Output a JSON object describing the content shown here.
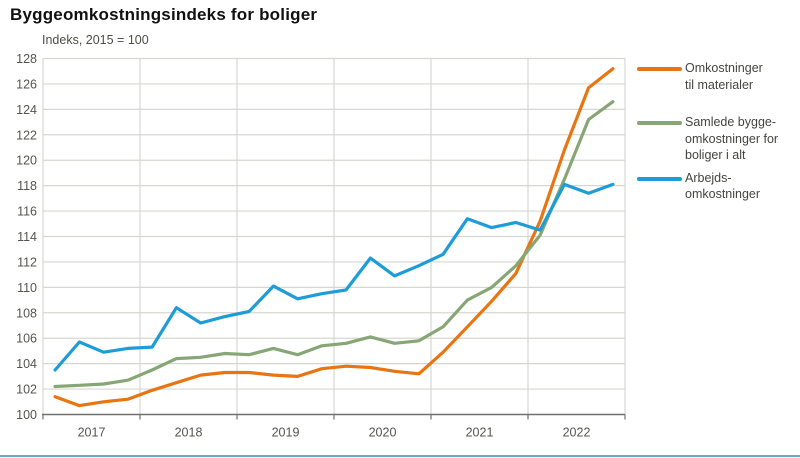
{
  "header": {
    "title": "Byggeomkostningsindeks for boliger",
    "subtitle": "Indeks, 2015 = 100"
  },
  "footer_rule_color": "#6ba7c8",
  "chart_data": {
    "type": "line",
    "title": "Byggeomkostningsindeks for boliger",
    "subtitle": "Indeks, 2015 = 100",
    "xlabel": "",
    "ylabel": "Indeks, 2015 = 100",
    "ylim": [
      100,
      128
    ],
    "ytick_step": 2,
    "yticks": [
      100,
      102,
      104,
      106,
      108,
      110,
      112,
      114,
      116,
      118,
      120,
      122,
      124,
      126,
      128
    ],
    "xticklabels": [
      "2017",
      "2018",
      "2019",
      "2020",
      "2021",
      "2022"
    ],
    "grid": true,
    "legend_position": "right",
    "categories": [
      "2017Q1",
      "2017Q2",
      "2017Q3",
      "2017Q4",
      "2018Q1",
      "2018Q2",
      "2018Q3",
      "2018Q4",
      "2019Q1",
      "2019Q2",
      "2019Q3",
      "2019Q4",
      "2020Q1",
      "2020Q2",
      "2020Q3",
      "2020Q4",
      "2021Q1",
      "2021Q2",
      "2021Q3",
      "2021Q4",
      "2022Q1",
      "2022Q2",
      "2022Q3",
      "2022Q4"
    ],
    "series": [
      {
        "name": "Omkostninger til materialer",
        "legend_label": "Omkostninger\ntil materialer",
        "color": "#e87511",
        "values": [
          101.4,
          100.7,
          101.0,
          101.2,
          101.9,
          102.5,
          103.1,
          103.3,
          103.3,
          103.1,
          103.0,
          103.6,
          103.8,
          103.7,
          103.4,
          103.2,
          104.9,
          106.9,
          108.9,
          111.1,
          115.2,
          120.8,
          125.7,
          127.2
        ]
      },
      {
        "name": "Samlede byggeomkostninger for boliger i alt",
        "legend_label": "Samlede bygge-\nomkostninger for\nboliger i alt",
        "color": "#86a775",
        "values": [
          102.2,
          102.3,
          102.4,
          102.7,
          103.5,
          104.4,
          104.5,
          104.8,
          104.7,
          105.2,
          104.7,
          105.4,
          105.6,
          106.1,
          105.6,
          105.8,
          106.9,
          109.0,
          110.0,
          111.7,
          114.1,
          118.5,
          123.2,
          124.6
        ]
      },
      {
        "name": "Arbejdsomkostninger",
        "legend_label": "Arbejds-\nomkostninger",
        "color": "#1e9cd8",
        "values": [
          103.5,
          105.7,
          104.9,
          105.2,
          105.3,
          108.4,
          107.2,
          107.7,
          108.1,
          110.1,
          109.1,
          109.5,
          109.8,
          112.3,
          110.9,
          111.7,
          112.6,
          115.4,
          114.7,
          115.1,
          114.5,
          118.1,
          117.4,
          118.1
        ]
      }
    ],
    "style": {
      "gridline_color": "#d7d7d0",
      "axis_line_color": "#70706a",
      "tick_label_color": "#55554f",
      "line_width": 3.2
    }
  }
}
